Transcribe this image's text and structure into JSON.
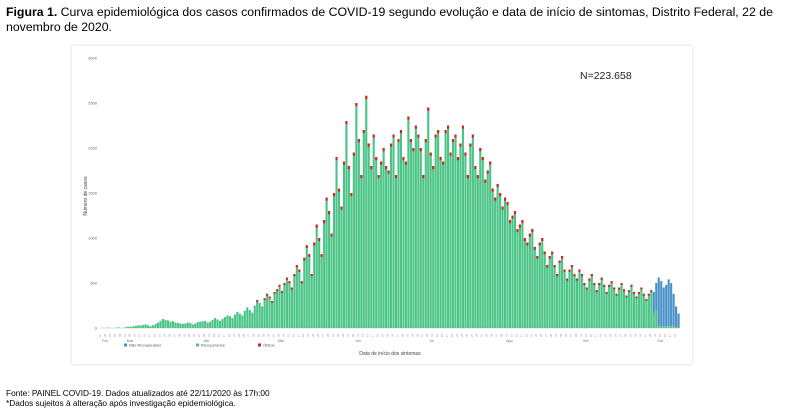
{
  "caption": {
    "prefix": "Figura 1.",
    "text": " Curva epidemiológica dos casos confirmados de COVID-19 segundo evolução e data de início de sintomas, Distrito Federal, 22 de novembro de 2020."
  },
  "chart_data": {
    "type": "bar",
    "stacked": true,
    "annotation": "N=223.658",
    "xlabel": "Data de início dos sintomas",
    "ylabel": "Número de casos",
    "ylim": [
      0,
      3000
    ],
    "yticks": [
      "0",
      "500",
      "1000",
      "1500",
      "2000",
      "2500",
      "3000"
    ],
    "months": [
      "Fev",
      "Mar",
      "Abr",
      "Mai",
      "Jun",
      "Jul",
      "Ago",
      "Set",
      "Out",
      "Nov"
    ],
    "month_start_day": [
      0,
      10,
      41,
      71,
      102,
      132,
      163,
      194,
      224,
      255
    ],
    "total_days": 270,
    "grid": false,
    "legend_position": "bottom-left",
    "series": [
      {
        "name": "Não Recuperados",
        "color": "#4a90c8"
      },
      {
        "name": "Recuperados",
        "color": "#4ac486"
      },
      {
        "name": "Óbitos",
        "color": "#d9201e"
      }
    ],
    "daily_totals_approx": [
      0,
      0,
      0,
      5,
      0,
      0,
      0,
      8,
      0,
      0,
      10,
      15,
      12,
      20,
      25,
      30,
      28,
      35,
      40,
      30,
      20,
      30,
      45,
      60,
      80,
      100,
      90,
      85,
      70,
      75,
      60,
      55,
      50,
      45,
      50,
      60,
      55,
      40,
      50,
      65,
      70,
      75,
      80,
      60,
      70,
      90,
      110,
      95,
      80,
      100,
      120,
      140,
      130,
      110,
      150,
      180,
      160,
      140,
      190,
      230,
      200,
      170,
      250,
      310,
      280,
      240,
      330,
      380,
      350,
      300,
      400,
      430,
      480,
      410,
      500,
      560,
      520,
      450,
      600,
      700,
      650,
      520,
      780,
      920,
      820,
      600,
      950,
      1150,
      1000,
      820,
      1200,
      1450,
      1300,
      1050,
      1500,
      1900,
      1550,
      1350,
      1850,
      2300,
      1800,
      1500,
      1950,
      2500,
      2100,
      1700,
      2200,
      2580,
      2050,
      1800,
      2150,
      1900,
      1700,
      1850,
      2000,
      1800,
      1750,
      2050,
      2150,
      1700,
      2100,
      2200,
      1900,
      1850,
      2350,
      2100,
      2000,
      2250,
      2150,
      2000,
      1700,
      2100,
      2450,
      1950,
      1800,
      2150,
      2200,
      1900,
      1850,
      2200,
      2250,
      1950,
      2100,
      2150,
      1900,
      2050,
      2250,
      1950,
      1700,
      2050,
      2150,
      1800,
      1700,
      2000,
      1900,
      1650,
      1750,
      1850,
      1550,
      1450,
      1600,
      1500,
      1350,
      1450,
      1400,
      1200,
      1250,
      1300,
      1100,
      1150,
      1200,
      1000,
      950,
      1050,
      1100,
      900,
      800,
      950,
      1000,
      850,
      700,
      800,
      850,
      700,
      600,
      750,
      800,
      650,
      550,
      650,
      700,
      600,
      550,
      650,
      600,
      500,
      450,
      550,
      600,
      500,
      420,
      500,
      560,
      480,
      400,
      480,
      520,
      450,
      380,
      450,
      500,
      430,
      360,
      420,
      480,
      400,
      350,
      400,
      450,
      380,
      320,
      380,
      420,
      400,
      500,
      560,
      520,
      450,
      480,
      540,
      500,
      380,
      240,
      160
    ]
  },
  "source": {
    "line1": "Fonte: PAINEL COVID-19. Dados atualizados até 22/11/2020 às 17h:00",
    "line2": "*Dados sujeitos à alteração após investigação epidemiológica."
  }
}
